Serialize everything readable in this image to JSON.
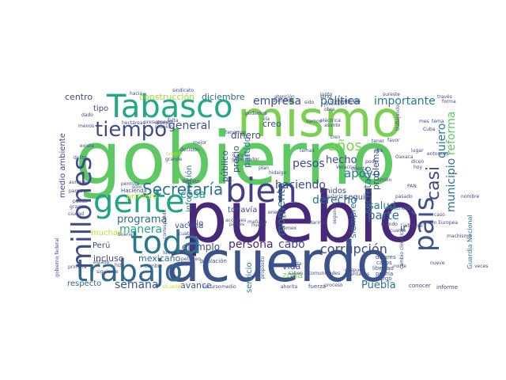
{
  "word_cloud": {
    "words": [
      {
        "text": "gobierno",
        "color": "#5ec962"
      },
      {
        "text": "pueblo",
        "color": "#482878"
      },
      {
        "text": "acuerdo",
        "color": "#3b528b"
      },
      {
        "text": "mismo",
        "color": "#7ad151"
      },
      {
        "text": "Tabasco",
        "color": "#22a884"
      },
      {
        "text": "gente",
        "color": "#20a386"
      },
      {
        "text": "toda",
        "color": "#2a788e"
      },
      {
        "text": "trabajo",
        "color": "#31688e"
      },
      {
        "text": "millones",
        "color": "#3e4a89"
      },
      {
        "text": "bien",
        "color": "#433e85"
      },
      {
        "text": "país",
        "color": "#3b528b"
      },
      {
        "text": "tiempo",
        "color": "#3e4a89"
      },
      {
        "text": "Secretaría",
        "color": "#2c728e"
      },
      {
        "text": "semana",
        "color": "#3b528b"
      },
      {
        "text": "corrupción",
        "color": "#3e4a89"
      },
      {
        "text": "años",
        "color": "#7ad151"
      },
      {
        "text": "municipio",
        "color": "#2c728e"
      },
      {
        "text": "reforma",
        "color": "#5ec962"
      },
      {
        "text": "política",
        "color": "#31688e"
      },
      {
        "text": "importante",
        "color": "#2a788e"
      },
      {
        "text": "empresa",
        "color": "#3e4a89"
      },
      {
        "text": "quiero",
        "color": "#2a788e"
      },
      {
        "text": "casi",
        "color": "#3e4a89"
      },
      {
        "text": "general",
        "color": "#3b528b"
      },
      {
        "text": "parte",
        "color": "#2c728e"
      },
      {
        "text": "cosa",
        "color": "#1f9e89"
      },
      {
        "text": "salud",
        "color": "#2a788e"
      },
      {
        "text": "hecho",
        "color": "#3e4a89"
      },
      {
        "text": "apoyo",
        "color": "#2a788e"
      },
      {
        "text": "haciendo",
        "color": "#3e4a89"
      },
      {
        "text": "derecho",
        "color": "#2c728e"
      },
      {
        "text": "momento",
        "color": "#2c728e"
      },
      {
        "text": "pesos",
        "color": "#3e4a89"
      },
      {
        "text": "manera",
        "color": "#22a884"
      },
      {
        "text": "persona",
        "color": "#482878"
      },
      {
        "text": "cabo",
        "color": "#3e4a89"
      },
      {
        "text": "Puebla",
        "color": "#2c728e"
      },
      {
        "text": "ejemplo",
        "color": "#3e4a89"
      },
      {
        "text": "programa",
        "color": "#31688e"
      },
      {
        "text": "secretario",
        "color": "#2a788e"
      },
      {
        "text": "dinero",
        "color": "#3e4a89"
      },
      {
        "text": "siempre",
        "color": "#2c728e"
      },
      {
        "text": "problema",
        "color": "#3b528b"
      },
      {
        "text": "público",
        "color": "#3b528b"
      },
      {
        "text": "precio",
        "color": "#3e4a89"
      },
      {
        "text": "partido",
        "color": "#2c728e"
      },
      {
        "text": "creo",
        "color": "#3e4a89"
      },
      {
        "text": "mexicano",
        "color": "#31688e"
      },
      {
        "text": "avance",
        "color": "#3b528b"
      },
      {
        "text": "respecto",
        "color": "#31688e"
      },
      {
        "text": "incluso",
        "color": "#3e4a89"
      },
      {
        "text": "Perú",
        "color": "#3e4a89"
      },
      {
        "text": "vida",
        "color": "#3e4a89"
      },
      {
        "text": "zona",
        "color": "#7ad151"
      },
      {
        "text": "servicio",
        "color": "#2c728e"
      },
      {
        "text": "diciembre",
        "color": "#31688e"
      },
      {
        "text": "construcción",
        "color": "#a0da39"
      },
      {
        "text": "centro",
        "color": "#3e4a89"
      },
      {
        "text": "tipo",
        "color": "#3e4a89"
      },
      {
        "text": "medio ambiente",
        "color": "#3e4a89"
      },
      {
        "text": "información",
        "color": "#2c728e"
      },
      {
        "text": "vacuna",
        "color": "#3e4a89"
      },
      {
        "text": "todavía",
        "color": "#3e4a89"
      },
      {
        "text": "seguir",
        "color": "#3e4a89"
      },
      {
        "text": "Unidos",
        "color": "#3e4a89"
      },
      {
        "text": "Hacienda",
        "color": "#3e4a89"
      },
      {
        "text": "primero",
        "color": "#bddf26"
      },
      {
        "text": "sólo",
        "color": "#3e4a89"
      },
      {
        "text": "muchas",
        "color": "#bddf26"
      },
      {
        "text": "gobierno federal",
        "color": "#3e4a89"
      },
      {
        "text": "Guardia Nacional",
        "color": "#2c728e"
      },
      {
        "text": "informe",
        "color": "#3e4a89"
      },
      {
        "text": "conocer",
        "color": "#3e4a89"
      },
      {
        "text": "proceso",
        "color": "#3e4a89"
      },
      {
        "text": "fuerza",
        "color": "#3e4a89"
      },
      {
        "text": "ahorita",
        "color": "#3e4a89"
      },
      {
        "text": "población",
        "color": "#3e4a89"
      },
      {
        "text": "situación",
        "color": "#bddf26"
      },
      {
        "text": "dólares",
        "color": "#3e4a89"
      },
      {
        "text": "casos",
        "color": "#3e4a89"
      },
      {
        "text": "libertad",
        "color": "#3e4a89"
      },
      {
        "text": "podría",
        "color": "#3e4a89"
      },
      {
        "text": "cargo",
        "color": "#3e4a89"
      },
      {
        "text": "nuevo",
        "color": "#3e4a89"
      },
      {
        "text": "mundo",
        "color": "#3e4a89"
      },
      {
        "text": "cuanto",
        "color": "#3e4a89"
      },
      {
        "text": "informar",
        "color": "#3e4a89"
      },
      {
        "text": "violencia",
        "color": "#2c728e"
      },
      {
        "text": "Unión",
        "color": "#3e4a89"
      },
      {
        "text": "sureste",
        "color": "#3e4a89"
      },
      {
        "text": "sido",
        "color": "#3e4a89"
      },
      {
        "text": "junto",
        "color": "#3e4a89"
      },
      {
        "text": "trabajadores",
        "color": "#3e4a89"
      },
      {
        "text": "atención",
        "color": "#3e4a89"
      },
      {
        "text": "inflación",
        "color": "#3e4a89"
      },
      {
        "text": "obra",
        "color": "#3e4a89"
      },
      {
        "text": "eléctrica",
        "color": "#3e4a89"
      },
      {
        "text": "sino",
        "color": "#3e4a89"
      },
      {
        "text": "asunto",
        "color": "#3e4a89"
      },
      {
        "text": "trabajando",
        "color": "#3e4a89"
      },
      {
        "text": "mes",
        "color": "#3e4a89"
      },
      {
        "text": "favor",
        "color": "#3e4a89"
      },
      {
        "text": "lugar",
        "color": "#3e4a89"
      },
      {
        "text": "dicen",
        "color": "#3e4a89"
      },
      {
        "text": "hoy",
        "color": "#3e4a89"
      },
      {
        "text": "poder",
        "color": "#3e4a89"
      },
      {
        "text": "cuenta",
        "color": "#3e4a89"
      },
      {
        "text": "temas",
        "color": "#3e4a89"
      },
      {
        "text": "plan",
        "color": "#3e4a89"
      },
      {
        "text": "sindicato",
        "color": "#3e4a89"
      },
      {
        "text": "reunión",
        "color": "#3e4a89"
      },
      {
        "text": "último",
        "color": "#3e4a89"
      },
      {
        "text": "falta",
        "color": "#3e4a89"
      },
      {
        "text": "hectáreas",
        "color": "#3e4a89"
      },
      {
        "text": "hacia",
        "color": "#3e4a89"
      },
      {
        "text": "mejor",
        "color": "#3e4a89"
      },
      {
        "text": "grande",
        "color": "#3e4a89"
      },
      {
        "text": "ningún",
        "color": "#bddf26"
      },
      {
        "text": "existe",
        "color": "#3e4a89"
      },
      {
        "text": "delito",
        "color": "#3e4a89"
      },
      {
        "text": "dado",
        "color": "#3e4a89"
      },
      {
        "text": "menos",
        "color": "#3e4a89"
      },
      {
        "text": "parque",
        "color": "#3e4a89"
      },
      {
        "text": "aunque",
        "color": "#3e4a89"
      },
      {
        "text": "siguiente",
        "color": "#3e4a89"
      },
      {
        "text": "lunes",
        "color": "#3e4a89"
      },
      {
        "text": "corresponde",
        "color": "#3e4a89"
      },
      {
        "text": "petróleo",
        "color": "#3e4a89"
      },
      {
        "text": "ciudad",
        "color": "#3e4a89"
      },
      {
        "text": "primera",
        "color": "#3e4a89"
      },
      {
        "text": "cuatro",
        "color": "#3e4a89"
      },
      {
        "text": "decreto",
        "color": "#3e4a89"
      },
      {
        "text": "países",
        "color": "#3e4a89"
      },
      {
        "text": "acciones",
        "color": "#3e4a89"
      },
      {
        "text": "Pemex",
        "color": "#3e4a89"
      },
      {
        "text": "Marina",
        "color": "#3e4a89"
      },
      {
        "text": "segundo",
        "color": "#3e4a89"
      },
      {
        "text": "comunidades",
        "color": "#3e4a89"
      },
      {
        "text": "después",
        "color": "#3e4a89"
      },
      {
        "text": "saben",
        "color": "#3e4a89"
      },
      {
        "text": "cada",
        "color": "#3e4a89"
      },
      {
        "text": "centavos",
        "color": "#3e4a89"
      },
      {
        "text": "Veracruz",
        "color": "#3e4a89"
      },
      {
        "text": "PAN",
        "color": "#3e4a89"
      },
      {
        "text": "iba",
        "color": "#3e4a89"
      },
      {
        "text": "machismo",
        "color": "#3e4a89"
      },
      {
        "text": "nueve",
        "color": "#3e4a89"
      },
      {
        "text": "veces",
        "color": "#3e4a89"
      },
      {
        "text": "permite",
        "color": "#3e4a89"
      },
      {
        "text": "cambio",
        "color": "#3e4a89"
      },
      {
        "text": "dio",
        "color": "#3e4a89"
      },
      {
        "text": "ir",
        "color": "#3e4a89"
      },
      {
        "text": "caso",
        "color": "#3e4a89"
      },
      {
        "text": "través",
        "color": "#3e4a89"
      },
      {
        "text": "forma",
        "color": "#3e4a89"
      },
      {
        "text": "jóvenes",
        "color": "#3e4a89"
      },
      {
        "text": "Cancún",
        "color": "#3e4a89"
      },
      {
        "text": "gobernador",
        "color": "#3e4a89"
      },
      {
        "text": "presupuesto",
        "color": "#3e4a89"
      },
      {
        "text": "hizo",
        "color": "#3e4a89"
      },
      {
        "text": "estado",
        "color": "#3e4a89"
      },
      {
        "text": "puedo",
        "color": "#3e4a89"
      },
      {
        "text": "gracias",
        "color": "#3e4a89"
      },
      {
        "text": "vía",
        "color": "#3e4a89"
      },
      {
        "text": "tenemos",
        "color": "#3e4a89"
      },
      {
        "text": "buena",
        "color": "#3e4a89"
      },
      {
        "text": "propósito",
        "color": "#3e4a89"
      },
      {
        "text": "energía",
        "color": "#3e4a89"
      },
      {
        "text": "hidalgo",
        "color": "#3e4a89"
      },
      {
        "text": "recurso",
        "color": "#3e4a89"
      },
      {
        "text": "medio",
        "color": "#3e4a89"
      },
      {
        "text": "Oaxaca",
        "color": "#3e4a89"
      },
      {
        "text": "entonces",
        "color": "#3e4a89"
      },
      {
        "text": "cambio climático",
        "color": "#3e4a89"
      },
      {
        "text": "podemos",
        "color": "#3e4a89"
      },
      {
        "text": "mañana",
        "color": "#3e4a89"
      },
      {
        "text": "decisión",
        "color": "#3e4a89"
      },
      {
        "text": "tener",
        "color": "#3e4a89"
      },
      {
        "text": "tren",
        "color": "#3e4a89"
      },
      {
        "text": "pasado",
        "color": "#3e4a89"
      },
      {
        "text": "Unión Europea",
        "color": "#3e4a89"
      },
      {
        "text": "tema",
        "color": "#3e4a89"
      },
      {
        "text": "nombre",
        "color": "#3e4a89"
      },
      {
        "text": "atención",
        "color": "#3e4a89"
      },
      {
        "text": "vamos",
        "color": "#3e4a89"
      },
      {
        "text": "salario",
        "color": "#3e4a89"
      },
      {
        "text": "Cuba",
        "color": "#3e4a89"
      },
      {
        "text": "sólo",
        "color": "#3e4a89"
      },
      {
        "text": "norte",
        "color": "#3e4a89"
      }
    ]
  }
}
